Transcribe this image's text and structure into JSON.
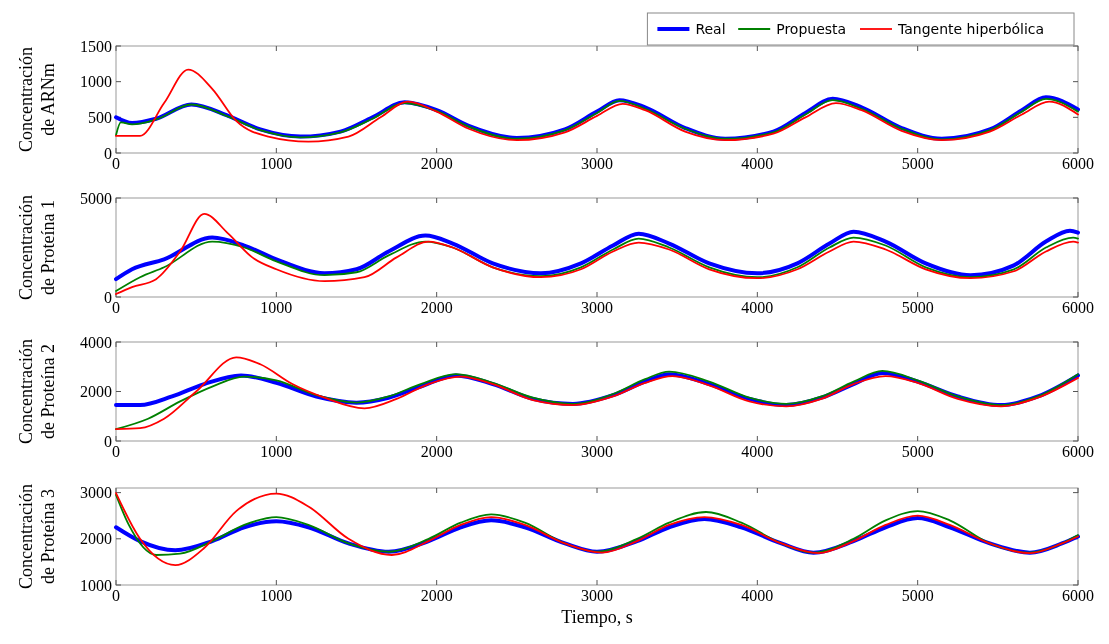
{
  "chart_data": [
    {
      "type": "line",
      "ylabel": "Concentración\nde ARNm",
      "xlim": [
        0,
        6000
      ],
      "xticks": [
        0,
        1000,
        2000,
        3000,
        4000,
        5000,
        6000
      ],
      "ylim": [
        0,
        1500
      ],
      "yticks": [
        0,
        500,
        1000,
        1500
      ],
      "legend": "top right",
      "series": [
        {
          "name": "Real",
          "color": "#0000ff",
          "x": [
            0,
            100,
            250,
            470,
            700,
            900,
            1150,
            1400,
            1600,
            1800,
            2000,
            2200,
            2500,
            2800,
            3000,
            3140,
            3300,
            3550,
            3800,
            4100,
            4300,
            4470,
            4650,
            4900,
            5150,
            5450,
            5650,
            5800,
            6000
          ],
          "values": [
            500,
            420,
            480,
            680,
            520,
            330,
            230,
            300,
            500,
            710,
            600,
            380,
            210,
            330,
            580,
            740,
            640,
            350,
            200,
            300,
            560,
            760,
            640,
            350,
            200,
            330,
            600,
            780,
            610
          ]
        },
        {
          "name": "Propuesta",
          "color": "#008000",
          "x": [
            0,
            30,
            100,
            250,
            470,
            700,
            900,
            1150,
            1400,
            1600,
            1800,
            2000,
            2200,
            2500,
            2800,
            3000,
            3140,
            3300,
            3550,
            3800,
            4100,
            4300,
            4470,
            4650,
            4900,
            5150,
            5450,
            5650,
            5800,
            6000
          ],
          "values": [
            250,
            430,
            400,
            470,
            680,
            510,
            320,
            220,
            290,
            480,
            700,
            590,
            370,
            200,
            320,
            560,
            730,
            620,
            340,
            200,
            290,
            540,
            740,
            620,
            340,
            190,
            320,
            580,
            760,
            580
          ]
        },
        {
          "name": "Tangente hiperbólica",
          "color": "#ff0000",
          "x": [
            0,
            150,
            300,
            450,
            600,
            750,
            950,
            1200,
            1450,
            1650,
            1820,
            2000,
            2200,
            2500,
            2800,
            3000,
            3160,
            3300,
            3550,
            3800,
            4100,
            4300,
            4490,
            4650,
            4900,
            5150,
            5450,
            5650,
            5820,
            6000
          ],
          "values": [
            240,
            240,
            700,
            1170,
            900,
            450,
            230,
            160,
            230,
            500,
            720,
            580,
            340,
            180,
            290,
            520,
            690,
            600,
            300,
            180,
            270,
            500,
            700,
            600,
            310,
            180,
            300,
            540,
            720,
            540
          ]
        }
      ]
    },
    {
      "type": "line",
      "ylabel": "Concentración\nde Proteína 1",
      "xlim": [
        0,
        6000
      ],
      "xticks": [
        0,
        1000,
        2000,
        3000,
        4000,
        5000,
        6000
      ],
      "ylim": [
        0,
        5000
      ],
      "yticks": [
        0,
        5000
      ],
      "series": [
        {
          "color": "#0000ff",
          "x": [
            0,
            100,
            300,
            600,
            800,
            1000,
            1300,
            1500,
            1700,
            1930,
            2100,
            2350,
            2650,
            2900,
            3100,
            3260,
            3450,
            3700,
            4000,
            4250,
            4450,
            4600,
            4800,
            5050,
            5330,
            5600,
            5800,
            5950,
            6000
          ],
          "values": [
            900,
            1400,
            1900,
            3000,
            2600,
            1900,
            1200,
            1400,
            2300,
            3100,
            2700,
            1700,
            1200,
            1700,
            2600,
            3200,
            2700,
            1700,
            1200,
            1700,
            2700,
            3300,
            2800,
            1700,
            1100,
            1600,
            2800,
            3350,
            3250
          ]
        },
        {
          "color": "#008000",
          "x": [
            0,
            150,
            300,
            600,
            800,
            1000,
            1300,
            1500,
            1700,
            1930,
            2100,
            2350,
            2650,
            2900,
            3100,
            3260,
            3450,
            3700,
            4000,
            4250,
            4450,
            4600,
            4800,
            5050,
            5330,
            5600,
            5800,
            5970,
            6000
          ],
          "values": [
            300,
            1000,
            1500,
            2800,
            2500,
            1800,
            1100,
            1250,
            2100,
            2800,
            2500,
            1500,
            1050,
            1500,
            2400,
            2950,
            2500,
            1500,
            1000,
            1500,
            2500,
            3000,
            2600,
            1500,
            1000,
            1400,
            2500,
            3000,
            2950
          ]
        },
        {
          "color": "#ff0000",
          "x": [
            0,
            100,
            250,
            400,
            550,
            700,
            850,
            1000,
            1300,
            1550,
            1750,
            1950,
            2100,
            2350,
            2650,
            2900,
            3100,
            3260,
            3450,
            3700,
            4000,
            4250,
            4450,
            4600,
            4800,
            5050,
            5330,
            5600,
            5800,
            5970,
            6000
          ],
          "values": [
            150,
            500,
            900,
            2300,
            4200,
            3200,
            2000,
            1400,
            800,
            1000,
            2000,
            2800,
            2500,
            1500,
            1000,
            1400,
            2300,
            2750,
            2400,
            1400,
            950,
            1400,
            2300,
            2800,
            2400,
            1400,
            950,
            1300,
            2300,
            2800,
            2750
          ]
        }
      ]
    },
    {
      "type": "line",
      "ylabel": "Concentración\nde Proteína 2",
      "xlim": [
        0,
        6000
      ],
      "xticks": [
        0,
        1000,
        2000,
        3000,
        4000,
        5000,
        6000
      ],
      "ylim": [
        0,
        4000
      ],
      "yticks": [
        0,
        2000,
        4000
      ],
      "series": [
        {
          "color": "#0000ff",
          "x": [
            0,
            150,
            350,
            550,
            780,
            1000,
            1250,
            1500,
            1700,
            1900,
            2120,
            2350,
            2600,
            2850,
            3100,
            3300,
            3450,
            3700,
            3950,
            4180,
            4400,
            4600,
            4780,
            5000,
            5250,
            5520,
            5750,
            6000
          ],
          "values": [
            1450,
            1450,
            1800,
            2300,
            2650,
            2350,
            1800,
            1550,
            1750,
            2200,
            2650,
            2300,
            1700,
            1500,
            1850,
            2400,
            2700,
            2300,
            1700,
            1450,
            1750,
            2300,
            2750,
            2400,
            1800,
            1450,
            1800,
            2650
          ]
        },
        {
          "color": "#008000",
          "x": [
            0,
            200,
            400,
            600,
            800,
            1000,
            1250,
            1500,
            1700,
            1900,
            2120,
            2350,
            2600,
            2850,
            3100,
            3300,
            3450,
            3700,
            3950,
            4180,
            4400,
            4600,
            4780,
            5000,
            5250,
            5520,
            5750,
            6000
          ],
          "values": [
            480,
            900,
            1600,
            2200,
            2600,
            2450,
            1850,
            1550,
            1800,
            2300,
            2700,
            2350,
            1750,
            1500,
            1900,
            2500,
            2800,
            2400,
            1750,
            1500,
            1800,
            2400,
            2830,
            2450,
            1800,
            1450,
            1800,
            2700
          ]
        },
        {
          "color": "#ff0000",
          "x": [
            0,
            150,
            300,
            500,
            750,
            900,
            1100,
            1300,
            1550,
            1750,
            1950,
            2150,
            2350,
            2600,
            2850,
            3100,
            3300,
            3470,
            3700,
            3950,
            4180,
            4400,
            4600,
            4800,
            5000,
            5250,
            5520,
            5750,
            6000
          ],
          "values": [
            480,
            520,
            900,
            2000,
            3380,
            3100,
            2300,
            1750,
            1320,
            1700,
            2300,
            2600,
            2300,
            1650,
            1450,
            1800,
            2350,
            2620,
            2250,
            1600,
            1400,
            1700,
            2300,
            2620,
            2350,
            1700,
            1400,
            1750,
            2550
          ]
        }
      ]
    },
    {
      "type": "line",
      "ylabel": "Concentración\nde Proteína 3",
      "xlabel": "Tiempo, s",
      "xlim": [
        0,
        6000
      ],
      "xticks": [
        0,
        1000,
        2000,
        3000,
        4000,
        5000,
        6000
      ],
      "ylim": [
        1000,
        3100
      ],
      "yticks": [
        1000,
        2000,
        3000
      ],
      "series": [
        {
          "color": "#0000ff",
          "x": [
            0,
            150,
            370,
            600,
            800,
            1000,
            1200,
            1450,
            1700,
            1950,
            2150,
            2340,
            2550,
            2800,
            3000,
            3250,
            3450,
            3670,
            3900,
            4150,
            4350,
            4600,
            4800,
            5000,
            5200,
            5450,
            5700,
            5900,
            6000
          ],
          "values": [
            2250,
            1950,
            1750,
            1950,
            2250,
            2380,
            2250,
            1900,
            1720,
            1950,
            2250,
            2400,
            2250,
            1900,
            1720,
            1950,
            2250,
            2430,
            2250,
            1900,
            1700,
            1950,
            2250,
            2450,
            2250,
            1900,
            1700,
            1900,
            2050
          ]
        },
        {
          "color": "#008000",
          "x": [
            0,
            80,
            250,
            400,
            600,
            800,
            1000,
            1200,
            1450,
            1700,
            1950,
            2150,
            2340,
            2550,
            2800,
            3000,
            3250,
            3450,
            3680,
            3900,
            4150,
            4350,
            4600,
            4800,
            5000,
            5200,
            5450,
            5700,
            5900,
            6000
          ],
          "values": [
            2950,
            2300,
            1650,
            1680,
            1950,
            2300,
            2470,
            2300,
            1900,
            1720,
            2000,
            2350,
            2530,
            2350,
            1900,
            1720,
            2000,
            2350,
            2580,
            2350,
            1900,
            1700,
            2000,
            2400,
            2600,
            2400,
            1900,
            1700,
            1900,
            2080
          ]
        },
        {
          "color": "#ff0000",
          "x": [
            0,
            150,
            370,
            550,
            750,
            1000,
            1200,
            1450,
            1720,
            1950,
            2150,
            2340,
            2550,
            2800,
            3030,
            3250,
            3450,
            3670,
            3900,
            4150,
            4380,
            4600,
            4800,
            5000,
            5200,
            5450,
            5700,
            5900,
            6000
          ],
          "values": [
            2990,
            2000,
            1430,
            1800,
            2600,
            2980,
            2700,
            2000,
            1650,
            1950,
            2300,
            2470,
            2300,
            1900,
            1700,
            1950,
            2300,
            2470,
            2300,
            1900,
            1690,
            1950,
            2300,
            2500,
            2300,
            1900,
            1690,
            1900,
            2050
          ]
        }
      ]
    }
  ]
}
